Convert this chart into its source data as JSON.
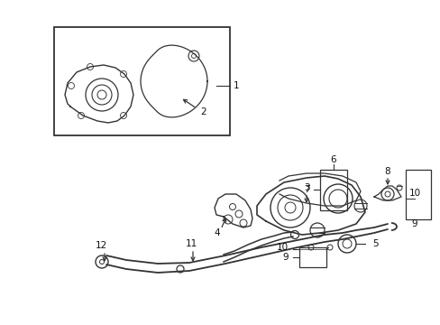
{
  "bg_color": "#ffffff",
  "fig_width": 4.89,
  "fig_height": 3.6,
  "dpi": 100,
  "line_color": "#333333",
  "label_fontsize": 7.5,
  "label_color": "#111111"
}
